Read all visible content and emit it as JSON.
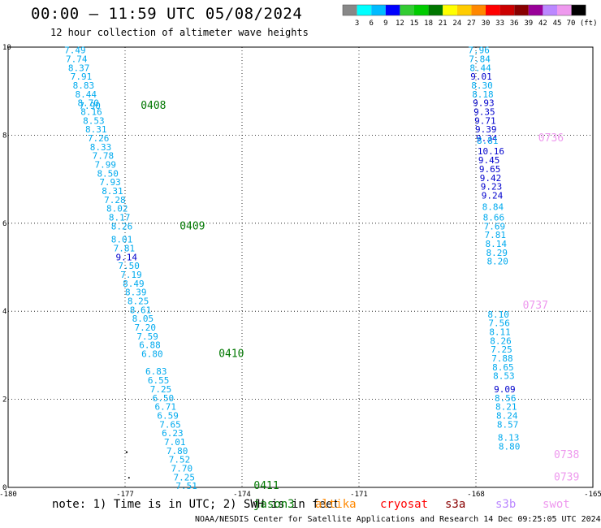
{
  "header": {
    "title": "00:00 — 11:59 UTC 05/08/2024",
    "subtitle": "12 hour collection of altimeter wave heights"
  },
  "legend": {
    "colors": [
      "#888888",
      "#00ffff",
      "#00bbff",
      "#0000ff",
      "#33cc33",
      "#00cc00",
      "#007700",
      "#ffff00",
      "#ffcc00",
      "#ff8800",
      "#ff0000",
      "#cc0000",
      "#880000",
      "#990099",
      "#bb88ff",
      "#ee99ee",
      "#000000"
    ],
    "labels": [
      "3",
      "6",
      "9",
      "12",
      "15",
      "18",
      "21",
      "24",
      "27",
      "30",
      "33",
      "36",
      "39",
      "42",
      "45",
      "70 (ft)"
    ]
  },
  "note": {
    "text": "note:  1) Time is in UTC; 2) SWH is in feet",
    "satellites": [
      {
        "name": "jason3",
        "color": "#007700"
      },
      {
        "name": "altika",
        "color": "#ff8800"
      },
      {
        "name": "cryosat",
        "color": "#ff0000"
      },
      {
        "name": "s3a",
        "color": "#880000"
      },
      {
        "name": "s3b",
        "color": "#bb88ff"
      },
      {
        "name": "swot",
        "color": "#ee99ee"
      }
    ]
  },
  "footer": "NOAA/NESDIS Center for Satellite Applications and Research    14 Dec 09:25:05 UTC 2024",
  "chart_data": {
    "type": "scatter",
    "title": "00:00 — 11:59 UTC 05/08/2024",
    "subtitle": "12 hour collection of altimeter wave heights",
    "xlim": [
      -180,
      -165
    ],
    "ylim": [
      0,
      10
    ],
    "x_ticks": [
      "-180",
      "-177",
      "-174",
      "-171",
      "-168",
      "-165"
    ],
    "y_ticks": [
      "0",
      "2",
      "4",
      "6",
      "8",
      "10"
    ],
    "grid": true,
    "tracks": [
      {
        "satellite": "jason3",
        "color": "#007700",
        "points": [
          {
            "x": -178.56,
            "y": 9.86,
            "v": "7.49",
            "c": "#00aaee"
          },
          {
            "x": -178.52,
            "y": 9.66,
            "v": "7.74",
            "c": "#00aaee"
          },
          {
            "x": -178.46,
            "y": 9.46,
            "v": "8.37",
            "c": "#00aaee"
          },
          {
            "x": -178.4,
            "y": 9.26,
            "v": "7.91",
            "c": "#00aaee"
          },
          {
            "x": -178.34,
            "y": 9.06,
            "v": "8.83",
            "c": "#00aaee"
          },
          {
            "x": -178.28,
            "y": 8.86,
            "v": "8.44",
            "c": "#00aaee"
          },
          {
            "x": -178.22,
            "y": 8.66,
            "v": "8.70",
            "c": "#00aaee"
          },
          {
            "x": -178.18,
            "y": 8.6,
            "v": "7.90",
            "c": "#00aaee"
          },
          {
            "x": -178.14,
            "y": 8.46,
            "v": "8.16",
            "c": "#00aaee"
          },
          {
            "x": -178.08,
            "y": 8.26,
            "v": "8.53",
            "c": "#00aaee"
          },
          {
            "x": -178.02,
            "y": 8.06,
            "v": "8.31",
            "c": "#00aaee"
          },
          {
            "x": -177.96,
            "y": 7.86,
            "v": "7.26",
            "c": "#00aaee"
          },
          {
            "x": -177.9,
            "y": 7.66,
            "v": "8.33",
            "c": "#00aaee"
          },
          {
            "x": -177.84,
            "y": 7.46,
            "v": "7.78",
            "c": "#00aaee"
          },
          {
            "x": -177.78,
            "y": 7.26,
            "v": "7.99",
            "c": "#00aaee"
          },
          {
            "x": -177.72,
            "y": 7.06,
            "v": "8.50",
            "c": "#00aaee"
          },
          {
            "x": -177.66,
            "y": 6.86,
            "v": "7.93",
            "c": "#00aaee"
          },
          {
            "x": -177.6,
            "y": 6.66,
            "v": "8.31",
            "c": "#00aaee"
          },
          {
            "x": -177.54,
            "y": 6.46,
            "v": "7.28",
            "c": "#00aaee"
          },
          {
            "x": -177.48,
            "y": 6.26,
            "v": "8.02",
            "c": "#00aaee"
          },
          {
            "x": -177.42,
            "y": 6.06,
            "v": "8.17",
            "c": "#00aaee"
          },
          {
            "x": -177.36,
            "y": 5.86,
            "v": "8.26",
            "c": "#00aaee"
          },
          {
            "x": -177.36,
            "y": 5.56,
            "v": "8.01",
            "c": "#00aaee"
          },
          {
            "x": -177.3,
            "y": 5.36,
            "v": "7.81",
            "c": "#00aaee"
          },
          {
            "x": -177.24,
            "y": 5.16,
            "v": "9.14",
            "c": "#0000cc"
          },
          {
            "x": -177.18,
            "y": 4.96,
            "v": "7.50",
            "c": "#00aaee"
          },
          {
            "x": -177.12,
            "y": 4.76,
            "v": "7.19",
            "c": "#00aaee"
          },
          {
            "x": -177.06,
            "y": 4.56,
            "v": "8.49",
            "c": "#00aaee"
          },
          {
            "x": -177.0,
            "y": 4.36,
            "v": "8.39",
            "c": "#00aaee"
          },
          {
            "x": -176.94,
            "y": 4.16,
            "v": "8.25",
            "c": "#00aaee"
          },
          {
            "x": -176.88,
            "y": 3.96,
            "v": "8.61",
            "c": "#00aaee"
          },
          {
            "x": -176.82,
            "y": 3.76,
            "v": "8.05",
            "c": "#00aaee"
          },
          {
            "x": -176.76,
            "y": 3.56,
            "v": "7.20",
            "c": "#00aaee"
          },
          {
            "x": -176.7,
            "y": 3.36,
            "v": "7.59",
            "c": "#00aaee"
          },
          {
            "x": -176.64,
            "y": 3.16,
            "v": "6.88",
            "c": "#00aaee"
          },
          {
            "x": -176.58,
            "y": 2.96,
            "v": "6.80",
            "c": "#00aaee"
          },
          {
            "x": -176.48,
            "y": 2.56,
            "v": "6.83",
            "c": "#00aaee"
          },
          {
            "x": -176.42,
            "y": 2.36,
            "v": "6.55",
            "c": "#00aaee"
          },
          {
            "x": -176.36,
            "y": 2.16,
            "v": "7.25",
            "c": "#00aaee"
          },
          {
            "x": -176.3,
            "y": 1.96,
            "v": "6.50",
            "c": "#00aaee"
          },
          {
            "x": -176.24,
            "y": 1.76,
            "v": "6.71",
            "c": "#00aaee"
          },
          {
            "x": -176.18,
            "y": 1.56,
            "v": "6.59",
            "c": "#00aaee"
          },
          {
            "x": -176.12,
            "y": 1.36,
            "v": "7.65",
            "c": "#00aaee"
          },
          {
            "x": -176.06,
            "y": 1.16,
            "v": "6.23",
            "c": "#00aaee"
          },
          {
            "x": -176.0,
            "y": 0.96,
            "v": "7.01",
            "c": "#00aaee"
          },
          {
            "x": -175.94,
            "y": 0.76,
            "v": "7.80",
            "c": "#00aaee"
          },
          {
            "x": -175.88,
            "y": 0.56,
            "v": "7.52",
            "c": "#00aaee"
          },
          {
            "x": -175.82,
            "y": 0.36,
            "v": "7.70",
            "c": "#00aaee"
          },
          {
            "x": -175.76,
            "y": 0.16,
            "v": "7.25",
            "c": "#00aaee"
          },
          {
            "x": -175.7,
            "y": -0.04,
            "v": "7.51",
            "c": "#00aaee"
          }
        ],
        "time_labels": [
          {
            "x": -176.6,
            "y": 8.6,
            "t": "0408"
          },
          {
            "x": -175.6,
            "y": 5.86,
            "t": "0409"
          },
          {
            "x": -174.6,
            "y": 2.96,
            "t": "0410"
          },
          {
            "x": -173.7,
            "y": -0.04,
            "t": "0411"
          }
        ]
      },
      {
        "satellite": "swot",
        "color": "#ee99ee",
        "points": [
          {
            "x": -168.2,
            "y": 9.86,
            "v": "7.96",
            "c": "#00aaee"
          },
          {
            "x": -168.18,
            "y": 9.66,
            "v": "7.84",
            "c": "#00aaee"
          },
          {
            "x": -168.16,
            "y": 9.46,
            "v": "8.44",
            "c": "#00aaee"
          },
          {
            "x": -168.14,
            "y": 9.26,
            "v": "9.01",
            "c": "#0000cc"
          },
          {
            "x": -168.12,
            "y": 9.06,
            "v": "8.30",
            "c": "#00aaee"
          },
          {
            "x": -168.1,
            "y": 8.86,
            "v": "8.18",
            "c": "#00aaee"
          },
          {
            "x": -168.08,
            "y": 8.66,
            "v": "9.93",
            "c": "#0000cc"
          },
          {
            "x": -168.06,
            "y": 8.46,
            "v": "9.35",
            "c": "#0000cc"
          },
          {
            "x": -168.04,
            "y": 8.26,
            "v": "9.71",
            "c": "#0000cc"
          },
          {
            "x": -168.02,
            "y": 8.06,
            "v": "9.39",
            "c": "#0000cc"
          },
          {
            "x": -168.0,
            "y": 7.86,
            "v": "9.34",
            "c": "#0000cc"
          },
          {
            "x": -167.98,
            "y": 7.8,
            "v": "8.81",
            "c": "#00aaee"
          },
          {
            "x": -167.96,
            "y": 7.56,
            "v": "10.16",
            "c": "#0000cc"
          },
          {
            "x": -167.94,
            "y": 7.36,
            "v": "9.45",
            "c": "#0000cc"
          },
          {
            "x": -167.92,
            "y": 7.16,
            "v": "9.65",
            "c": "#0000cc"
          },
          {
            "x": -167.9,
            "y": 6.96,
            "v": "9.42",
            "c": "#0000cc"
          },
          {
            "x": -167.88,
            "y": 6.76,
            "v": "9.23",
            "c": "#0000cc"
          },
          {
            "x": -167.86,
            "y": 6.56,
            "v": "9.24",
            "c": "#0000cc"
          },
          {
            "x": -167.84,
            "y": 6.3,
            "v": "8.84",
            "c": "#00aaee"
          },
          {
            "x": -167.82,
            "y": 6.06,
            "v": "8.66",
            "c": "#00aaee"
          },
          {
            "x": -167.8,
            "y": 5.86,
            "v": "7.69",
            "c": "#00aaee"
          },
          {
            "x": -167.78,
            "y": 5.66,
            "v": "7.81",
            "c": "#00aaee"
          },
          {
            "x": -167.76,
            "y": 5.46,
            "v": "8.14",
            "c": "#00aaee"
          },
          {
            "x": -167.74,
            "y": 5.26,
            "v": "8.29",
            "c": "#00aaee"
          },
          {
            "x": -167.72,
            "y": 5.06,
            "v": "8.20",
            "c": "#00aaee"
          },
          {
            "x": -167.7,
            "y": 3.86,
            "v": "8.10",
            "c": "#00aaee"
          },
          {
            "x": -167.68,
            "y": 3.66,
            "v": "7.56",
            "c": "#00aaee"
          },
          {
            "x": -167.66,
            "y": 3.46,
            "v": "8.11",
            "c": "#00aaee"
          },
          {
            "x": -167.64,
            "y": 3.26,
            "v": "8.26",
            "c": "#00aaee"
          },
          {
            "x": -167.62,
            "y": 3.06,
            "v": "7.25",
            "c": "#00aaee"
          },
          {
            "x": -167.6,
            "y": 2.86,
            "v": "7.88",
            "c": "#00aaee"
          },
          {
            "x": -167.58,
            "y": 2.66,
            "v": "8.65",
            "c": "#00aaee"
          },
          {
            "x": -167.56,
            "y": 2.46,
            "v": "8.53",
            "c": "#00aaee"
          },
          {
            "x": -167.54,
            "y": 2.16,
            "v": "9.09",
            "c": "#0000cc"
          },
          {
            "x": -167.52,
            "y": 1.96,
            "v": "8.56",
            "c": "#00aaee"
          },
          {
            "x": -167.5,
            "y": 1.76,
            "v": "8.21",
            "c": "#00aaee"
          },
          {
            "x": -167.48,
            "y": 1.56,
            "v": "8.24",
            "c": "#00aaee"
          },
          {
            "x": -167.46,
            "y": 1.36,
            "v": "8.57",
            "c": "#00aaee"
          },
          {
            "x": -167.44,
            "y": 1.06,
            "v": "8.13",
            "c": "#00aaee"
          },
          {
            "x": -167.42,
            "y": 0.86,
            "v": "8.80",
            "c": "#00aaee"
          }
        ],
        "time_labels": [
          {
            "x": -166.4,
            "y": 7.86,
            "t": "0736"
          },
          {
            "x": -166.8,
            "y": 4.06,
            "t": "0737"
          },
          {
            "x": -166.0,
            "y": 0.66,
            "t": "0738"
          },
          {
            "x": -166.0,
            "y": 0.16,
            "t": "0739"
          }
        ]
      }
    ]
  }
}
